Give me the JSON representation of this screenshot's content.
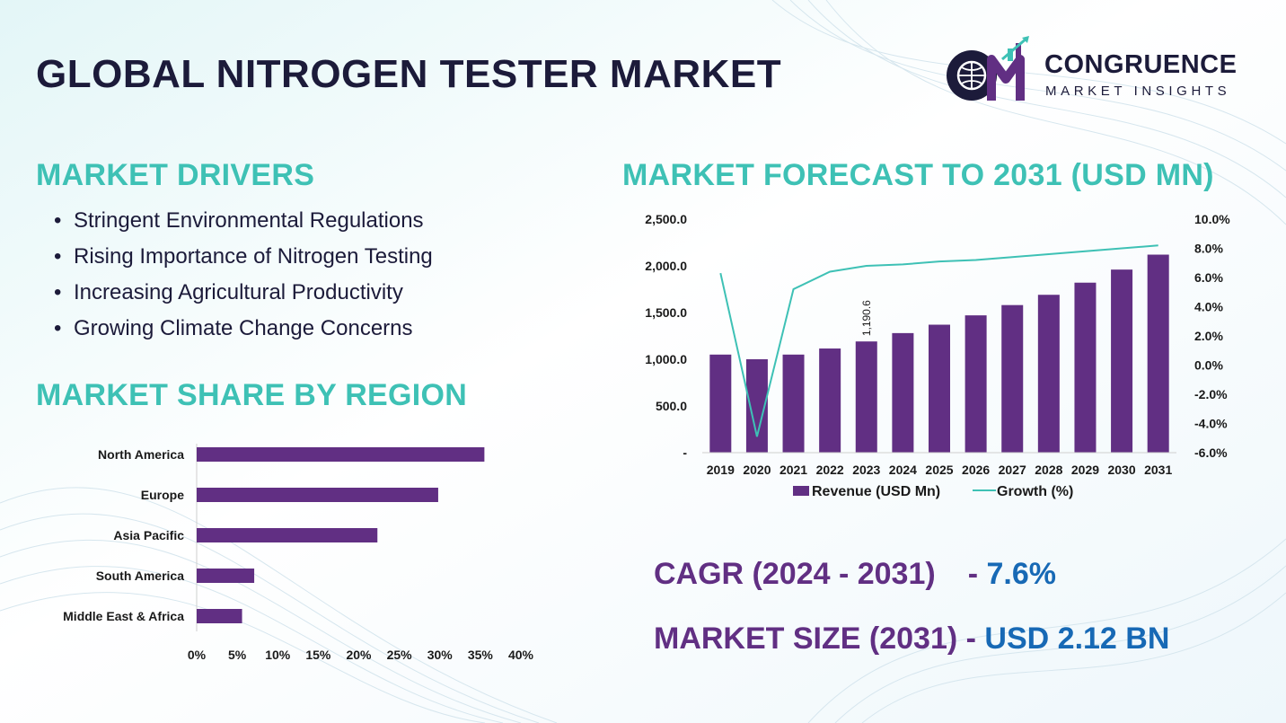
{
  "title": "GLOBAL NITROGEN TESTER MARKET",
  "logo": {
    "line1": "CONGRUENCE",
    "line2": "MARKET INSIGHTS"
  },
  "drivers": {
    "heading": "MARKET DRIVERS",
    "items": [
      "Stringent Environmental Regulations",
      "Rising Importance of Nitrogen Testing",
      "Increasing Agricultural Productivity",
      "Growing Climate Change Concerns"
    ]
  },
  "share": {
    "heading": "MARKET SHARE BY REGION"
  },
  "forecast": {
    "heading": "MARKET FORECAST TO 2031 (USD MN)"
  },
  "kpis": {
    "cagr_label": "CAGR (2024 - 2031)",
    "cagr_sep": "-",
    "cagr_value": "7.6%",
    "size_label": "MARKET SIZE (2031)",
    "size_sep": "-",
    "size_value": "USD 2.12 BN"
  },
  "colors": {
    "bar": "#612f83",
    "line": "#3ec1b5",
    "heading": "#3ec1b5",
    "title": "#1c1b3a",
    "accent_blue": "#1769b5"
  },
  "chart_data": [
    {
      "type": "bar",
      "orientation": "horizontal",
      "categories": [
        "North America",
        "Europe",
        "Asia Pacific",
        "South America",
        "Middle East & Africa"
      ],
      "values": [
        35.5,
        29.8,
        22.3,
        7.1,
        5.6
      ],
      "xticks": [
        "0%",
        "5%",
        "10%",
        "15%",
        "20%",
        "25%",
        "30%",
        "35%",
        "40%"
      ],
      "xlim": [
        0,
        40
      ],
      "grid": false
    },
    {
      "type": "bar+line",
      "categories": [
        "2019",
        "2020",
        "2021",
        "2022",
        "2023",
        "2024",
        "2025",
        "2026",
        "2027",
        "2028",
        "2029",
        "2030",
        "2031"
      ],
      "series": [
        {
          "name": "Revenue (USD Mn)",
          "axis": "left",
          "type": "bar",
          "values": [
            1050,
            1000,
            1050,
            1115,
            1190.6,
            1280,
            1370,
            1470,
            1580,
            1690,
            1820,
            1960,
            2120
          ]
        },
        {
          "name": "Growth (%)",
          "axis": "right",
          "type": "line",
          "values": [
            6.3,
            -4.9,
            5.2,
            6.4,
            6.8,
            6.9,
            7.1,
            7.2,
            7.4,
            7.6,
            7.8,
            8.0,
            8.2
          ]
        }
      ],
      "data_labels": [
        {
          "category": "2023",
          "text": "1,190.6"
        }
      ],
      "yticks_left": [
        "-",
        "500.0",
        "1,000.0",
        "1,500.0",
        "2,000.0",
        "2,500.0"
      ],
      "ylim_left": [
        0,
        2500
      ],
      "yticks_right": [
        "-6.0%",
        "-4.0%",
        "-2.0%",
        "0.0%",
        "2.0%",
        "4.0%",
        "6.0%",
        "8.0%",
        "10.0%"
      ],
      "ylim_right": [
        -6,
        10
      ],
      "legend": "bottom",
      "grid": false
    }
  ]
}
